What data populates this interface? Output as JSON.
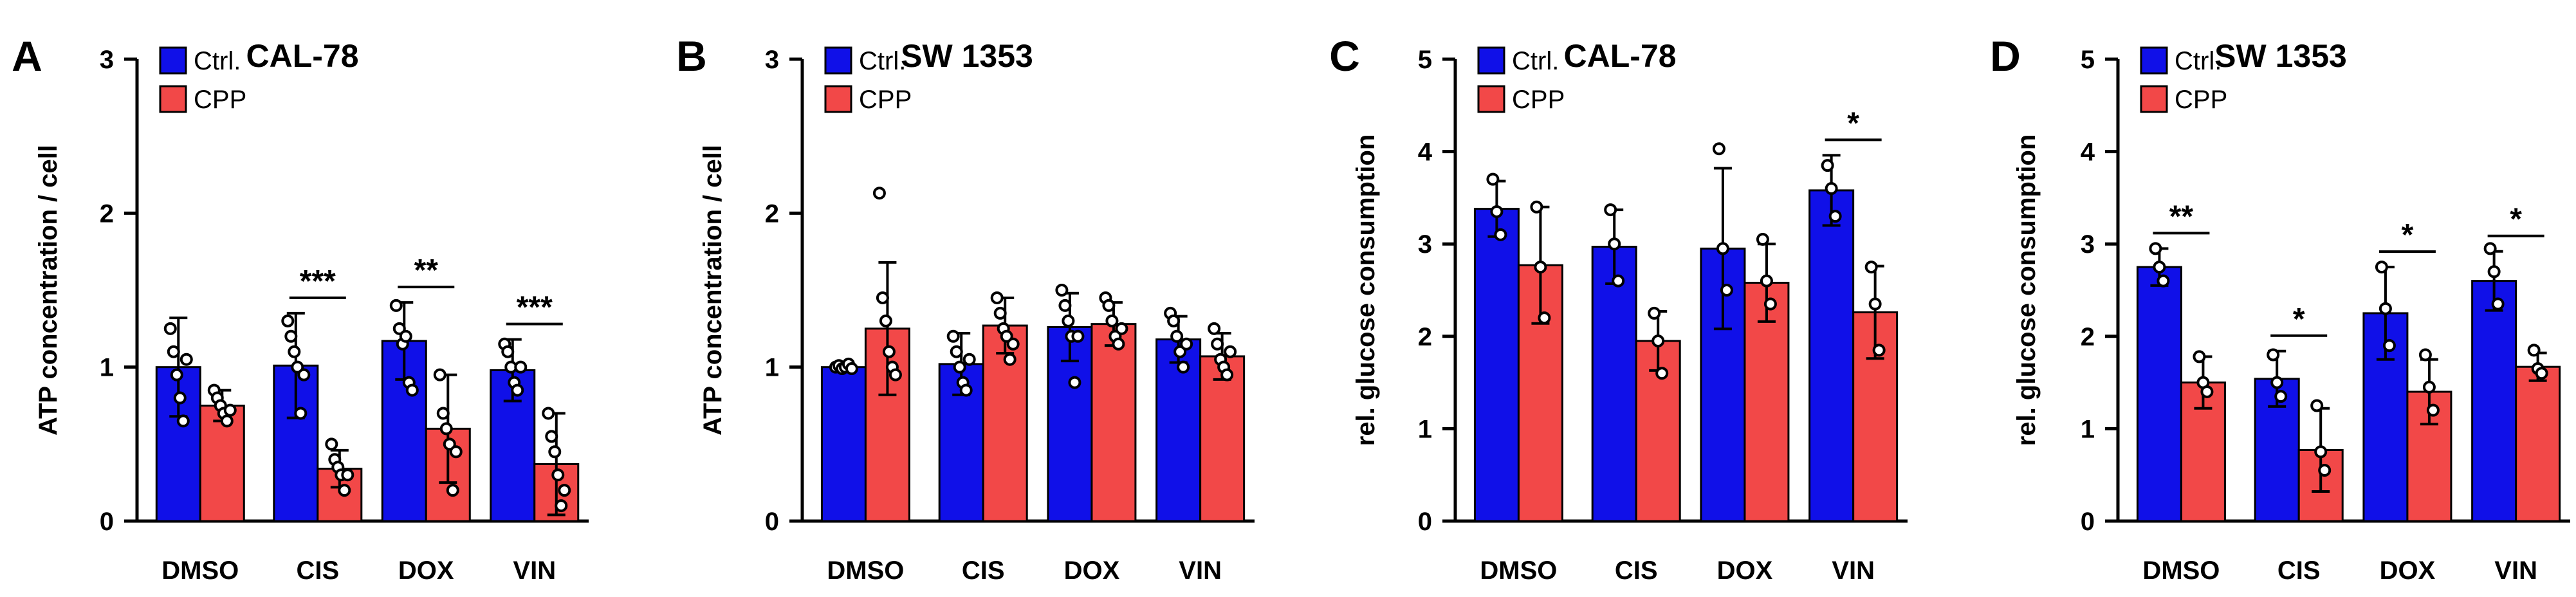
{
  "colors": {
    "ctrl": "#1010e8",
    "cpp": "#f24848",
    "axis": "#000000"
  },
  "chart_data": [
    {
      "panel": "A",
      "type": "bar",
      "title": "CAL-78",
      "ylabel": "ATP concentration / cell",
      "xlabel": "",
      "ylim": [
        0,
        3
      ],
      "yticks": [
        0,
        1,
        2,
        3
      ],
      "categories": [
        "DMSO",
        "CIS",
        "DOX",
        "VIN"
      ],
      "legend": [
        "Ctrl.",
        "CPP"
      ],
      "series": [
        {
          "name": "Ctrl.",
          "values": [
            1.0,
            1.01,
            1.17,
            0.98
          ],
          "sd": [
            0.32,
            0.34,
            0.25,
            0.2
          ],
          "points": [
            [
              1.25,
              1.1,
              0.95,
              0.8,
              0.65,
              1.05
            ],
            [
              1.3,
              1.2,
              1.1,
              1.0,
              0.7,
              0.95
            ],
            [
              1.4,
              1.25,
              1.15,
              1.2,
              0.9,
              0.85
            ],
            [
              1.15,
              1.1,
              1.0,
              0.9,
              0.85,
              1.0
            ]
          ]
        },
        {
          "name": "CPP",
          "values": [
            0.75,
            0.34,
            0.6,
            0.37
          ],
          "sd": [
            0.1,
            0.12,
            0.35,
            0.33
          ],
          "points": [
            [
              0.85,
              0.8,
              0.75,
              0.7,
              0.65,
              0.72
            ],
            [
              0.5,
              0.4,
              0.35,
              0.3,
              0.2,
              0.3
            ],
            [
              0.95,
              0.7,
              0.6,
              0.5,
              0.2,
              0.45
            ],
            [
              0.7,
              0.55,
              0.45,
              0.3,
              0.1,
              0.2
            ]
          ]
        }
      ],
      "significance": [
        "",
        "***",
        "**",
        "***"
      ]
    },
    {
      "panel": "B",
      "type": "bar",
      "title": "SW 1353",
      "ylabel": "ATP concentration / cell",
      "xlabel": "",
      "ylim": [
        0,
        3
      ],
      "yticks": [
        0,
        1,
        2,
        3
      ],
      "categories": [
        "DMSO",
        "CIS",
        "DOX",
        "VIN"
      ],
      "legend": [
        "Ctrl.",
        "CPP"
      ],
      "series": [
        {
          "name": "Ctrl.",
          "values": [
            1.0,
            1.02,
            1.26,
            1.18
          ],
          "sd": [
            0.02,
            0.2,
            0.22,
            0.15
          ],
          "points": [
            [
              1.0,
              1.01,
              0.99,
              1.0,
              1.02,
              0.99
            ],
            [
              1.2,
              1.1,
              1.0,
              0.9,
              0.85,
              1.05
            ],
            [
              1.5,
              1.4,
              1.3,
              1.2,
              0.9,
              1.2
            ],
            [
              1.35,
              1.3,
              1.2,
              1.1,
              1.0,
              1.15
            ]
          ]
        },
        {
          "name": "CPP",
          "values": [
            1.25,
            1.27,
            1.28,
            1.07
          ],
          "sd": [
            0.43,
            0.18,
            0.14,
            0.15
          ],
          "points": [
            [
              2.13,
              1.45,
              1.3,
              1.1,
              1.0,
              0.95
            ],
            [
              1.45,
              1.35,
              1.25,
              1.2,
              1.05,
              1.15
            ],
            [
              1.45,
              1.4,
              1.3,
              1.2,
              1.15,
              1.25
            ],
            [
              1.25,
              1.15,
              1.05,
              1.0,
              0.95,
              1.1
            ]
          ]
        }
      ],
      "significance": [
        "",
        "",
        "",
        ""
      ]
    },
    {
      "panel": "C",
      "type": "bar",
      "title": "CAL-78",
      "ylabel": "rel. glucose consumption",
      "xlabel": "",
      "ylim": [
        0,
        5
      ],
      "yticks": [
        0,
        1,
        2,
        3,
        4,
        5
      ],
      "categories": [
        "DMSO",
        "CIS",
        "DOX",
        "VIN"
      ],
      "legend": [
        "Ctrl.",
        "CPP"
      ],
      "series": [
        {
          "name": "Ctrl.",
          "values": [
            3.38,
            2.97,
            2.95,
            3.58
          ],
          "sd": [
            0.3,
            0.4,
            0.87,
            0.38
          ],
          "points": [
            [
              3.7,
              3.35,
              3.1
            ],
            [
              3.37,
              3.0,
              2.6
            ],
            [
              4.03,
              2.95,
              2.5
            ],
            [
              3.85,
              3.6,
              3.3
            ]
          ]
        },
        {
          "name": "CPP",
          "values": [
            2.77,
            1.95,
            2.58,
            2.26
          ],
          "sd": [
            0.63,
            0.32,
            0.42,
            0.5
          ],
          "points": [
            [
              3.4,
              2.75,
              2.2
            ],
            [
              2.25,
              1.95,
              1.6
            ],
            [
              3.05,
              2.6,
              2.35
            ],
            [
              2.75,
              2.35,
              1.85
            ]
          ]
        }
      ],
      "significance": [
        "",
        "",
        "",
        "*"
      ]
    },
    {
      "panel": "D",
      "type": "bar",
      "title": "SW 1353",
      "ylabel": "rel. glucose consumption",
      "xlabel": "",
      "ylim": [
        0,
        5
      ],
      "yticks": [
        0,
        1,
        2,
        3,
        4,
        5
      ],
      "categories": [
        "DMSO",
        "CIS",
        "DOX",
        "VIN"
      ],
      "legend": [
        "Ctrl.",
        "CPP"
      ],
      "series": [
        {
          "name": "Ctrl.",
          "values": [
            2.75,
            1.54,
            2.25,
            2.6
          ],
          "sd": [
            0.2,
            0.3,
            0.5,
            0.32
          ],
          "points": [
            [
              2.95,
              2.75,
              2.6
            ],
            [
              1.8,
              1.5,
              1.35
            ],
            [
              2.75,
              2.3,
              1.9
            ],
            [
              2.95,
              2.7,
              2.35
            ]
          ]
        },
        {
          "name": "CPP",
          "values": [
            1.5,
            0.77,
            1.4,
            1.67
          ],
          "sd": [
            0.28,
            0.45,
            0.35,
            0.15
          ],
          "points": [
            [
              1.78,
              1.5,
              1.4
            ],
            [
              1.25,
              0.75,
              0.55
            ],
            [
              1.8,
              1.45,
              1.2
            ],
            [
              1.85,
              1.65,
              1.6
            ]
          ]
        }
      ],
      "significance": [
        "**",
        "*",
        "*",
        "*"
      ]
    }
  ]
}
